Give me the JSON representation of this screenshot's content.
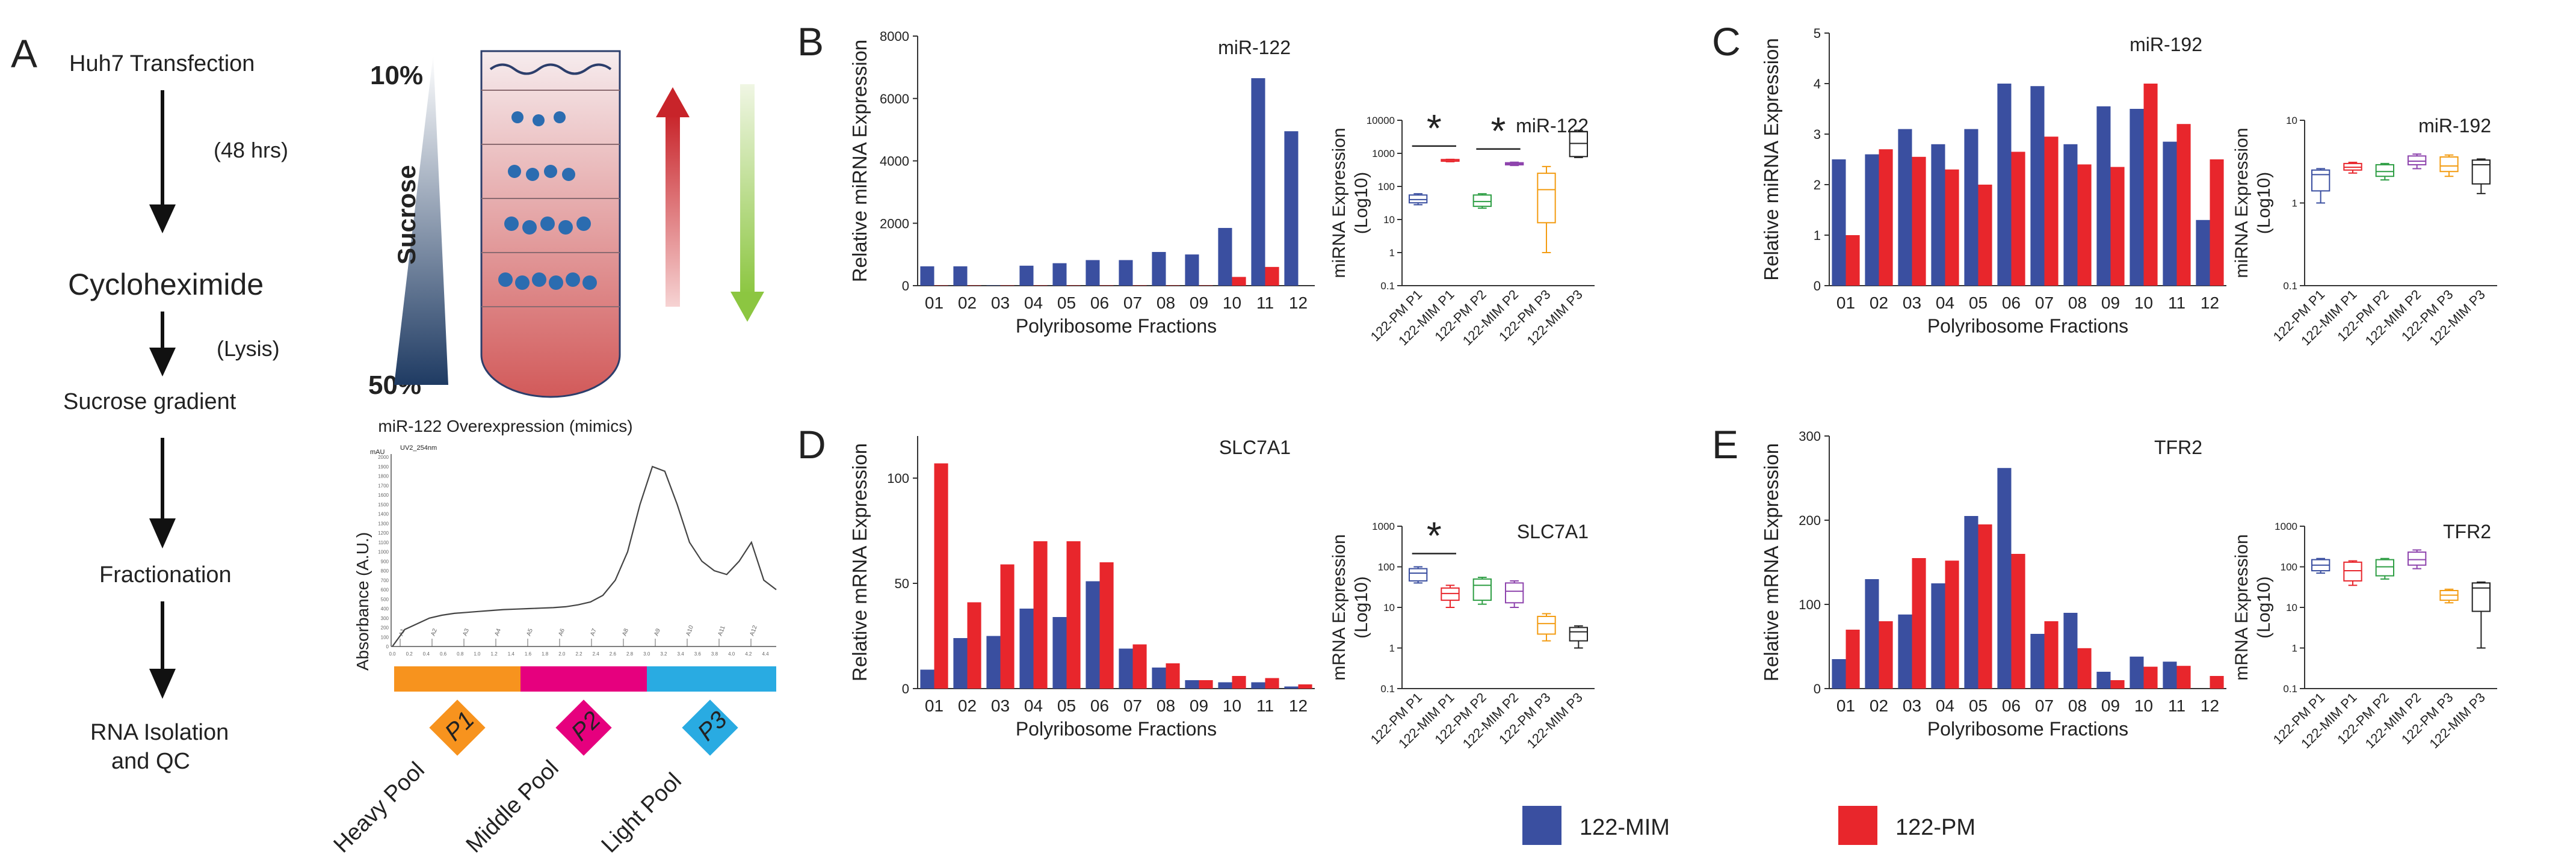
{
  "colors": {
    "mim": "#3a4fa0",
    "pm": "#e8262c",
    "arrow_red": "#c8242a",
    "arrow_green": "#8cc641",
    "pool1": "#f7931e",
    "pool2": "#e6007e",
    "pool3": "#29abe2"
  },
  "panel_letters": {
    "a": "A",
    "b": "B",
    "c": "C",
    "d": "D",
    "e": "E"
  },
  "workflow": {
    "steps": [
      "Huh7 Transfection",
      "(48 hrs)",
      "Cycloheximide",
      "(Lysis)",
      "Sucrose gradient",
      "Fractionation",
      "RNA Isolation",
      "and QC"
    ]
  },
  "gradient": {
    "top": "10%",
    "bottom": "50%",
    "label": "Sucrose"
  },
  "profile": {
    "title": "miR-122 Overexpression (mimics)",
    "ylabel": "Absorbance (A.U.)",
    "instrument_label": "UV2_254nm",
    "unit_label": "mAU",
    "yticks": [
      "2000",
      "1900",
      "1800",
      "1700",
      "1600",
      "1500",
      "1400",
      "1300",
      "1200",
      "1100",
      "1000",
      "900",
      "800",
      "700",
      "600",
      "500",
      "400",
      "300",
      "200",
      "100",
      "0"
    ],
    "xticks": [
      "0.0",
      "0.2",
      "0.4",
      "0.6",
      "0.8",
      "1.0",
      "1.2",
      "1.4",
      "1.6",
      "1.8",
      "2.0",
      "2.2",
      "2.4",
      "2.6",
      "2.8",
      "3.0",
      "3.2",
      "3.4",
      "3.6",
      "3.8",
      "4.0",
      "4.2",
      "4.4"
    ],
    "fraction_marks": [
      "A1",
      "A2",
      "A3",
      "A4",
      "A5",
      "A6",
      "A7",
      "A8",
      "A9",
      "A10",
      "A11",
      "A12"
    ],
    "trace_y": [
      0,
      180,
      240,
      300,
      330,
      350,
      360,
      370,
      380,
      390,
      395,
      400,
      405,
      410,
      420,
      440,
      470,
      540,
      700,
      1000,
      1500,
      1900,
      1850,
      1500,
      1100,
      900,
      800,
      760,
      900,
      1100,
      700,
      600
    ]
  },
  "pools": [
    {
      "code": "P1",
      "label": "Heavy Pool"
    },
    {
      "code": "P2",
      "label": "Middle Pool"
    },
    {
      "code": "P3",
      "label": "Light  Pool"
    }
  ],
  "legend": {
    "mim": "122-MIM",
    "pm": "122-PM"
  },
  "chart_data": [
    {
      "panel": "B",
      "type": "bar",
      "title": "miR-122",
      "xlabel": "Polyribosome Fractions",
      "ylabel": "Relative miRNA Expression",
      "categories": [
        "01",
        "02",
        "03",
        "04",
        "05",
        "06",
        "07",
        "08",
        "09",
        "10",
        "11",
        "12"
      ],
      "ylim": [
        0,
        8000
      ],
      "yticks": [
        "0",
        "2000",
        "4000",
        "6000",
        "8000"
      ],
      "series": [
        {
          "name": "122-MIM",
          "values": [
            620,
            620,
            10,
            640,
            720,
            820,
            820,
            1080,
            1000,
            1850,
            6650,
            4950
          ]
        },
        {
          "name": "122-PM",
          "values": [
            10,
            10,
            10,
            10,
            10,
            10,
            10,
            10,
            10,
            280,
            600,
            0
          ]
        }
      ]
    },
    {
      "panel": "B",
      "type": "box",
      "title": "miR-122",
      "scale": "log",
      "ylabel_line1": "miRNA Expression",
      "ylabel_line2": "(Log10)",
      "ylim": [
        0.1,
        10000
      ],
      "yticks": [
        "0.1",
        "1",
        "10",
        "100",
        "1000",
        "10000"
      ],
      "categories": [
        "122-PM P1",
        "122-MIM P1",
        "122-PM P2",
        "122-MIM P2",
        "122-PM P3",
        "122-MIM P3"
      ],
      "box_colors": [
        "#3a4fa0",
        "#e8262c",
        "#2e9e44",
        "#8e44ad",
        "#f39c12",
        "#222222"
      ],
      "boxes": [
        [
          28,
          32,
          40,
          55,
          60
        ],
        [
          560,
          580,
          600,
          650,
          660
        ],
        [
          22,
          25,
          35,
          55,
          60
        ],
        [
          430,
          450,
          480,
          520,
          540
        ],
        [
          1,
          8,
          80,
          250,
          400
        ],
        [
          750,
          800,
          2000,
          4500,
          5000
        ]
      ],
      "significance": [
        {
          "between": [
            0,
            1
          ],
          "label": "*"
        },
        {
          "between": [
            2,
            3
          ],
          "label": "*"
        }
      ]
    },
    {
      "panel": "C",
      "type": "bar",
      "title": "miR-192",
      "xlabel": "Polyribosome Fractions",
      "ylabel": "Relative miRNA Expression",
      "categories": [
        "01",
        "02",
        "03",
        "04",
        "05",
        "06",
        "07",
        "08",
        "09",
        "10",
        "11",
        "12"
      ],
      "ylim": [
        0,
        5
      ],
      "yticks": [
        "0",
        "1",
        "2",
        "3",
        "4",
        "5"
      ],
      "series": [
        {
          "name": "122-MIM",
          "values": [
            2.5,
            2.6,
            3.1,
            2.8,
            3.1,
            4.0,
            3.95,
            2.8,
            3.55,
            3.5,
            2.85,
            1.3
          ]
        },
        {
          "name": "122-PM",
          "values": [
            1.0,
            2.7,
            2.55,
            2.3,
            2.0,
            2.65,
            2.95,
            2.4,
            2.35,
            4.0,
            3.2,
            2.5
          ]
        }
      ]
    },
    {
      "panel": "C",
      "type": "box",
      "title": "miR-192",
      "scale": "log",
      "ylabel_line1": "miRNA Expression",
      "ylabel_line2": "(Log10)",
      "ylim": [
        0.1,
        10
      ],
      "yticks": [
        "0.1",
        "1",
        "10"
      ],
      "categories": [
        "122-PM P1",
        "122-MIM P1",
        "122-PM P2",
        "122-MIM P2",
        "122-PM P3",
        "122-MIM P3"
      ],
      "box_colors": [
        "#3a4fa0",
        "#e8262c",
        "#2e9e44",
        "#8e44ad",
        "#f39c12",
        "#222222"
      ],
      "boxes": [
        [
          1.0,
          1.4,
          2.2,
          2.5,
          2.6
        ],
        [
          2.3,
          2.5,
          2.7,
          3.0,
          3.1
        ],
        [
          1.9,
          2.1,
          2.4,
          2.9,
          3.0
        ],
        [
          2.6,
          2.9,
          3.2,
          3.7,
          3.9
        ],
        [
          2.1,
          2.4,
          2.8,
          3.6,
          3.8
        ],
        [
          1.3,
          1.7,
          2.9,
          3.3,
          3.4
        ]
      ]
    },
    {
      "panel": "D",
      "type": "bar",
      "title": "SLC7A1",
      "xlabel": "Polyribosome Fractions",
      "ylabel": "Relative mRNA Expression",
      "categories": [
        "01",
        "02",
        "03",
        "04",
        "05",
        "06",
        "07",
        "08",
        "09",
        "10",
        "11",
        "12"
      ],
      "ylim": [
        0,
        120
      ],
      "yticks": [
        "0",
        "50",
        "100"
      ],
      "series": [
        {
          "name": "122-MIM",
          "values": [
            9,
            24,
            25,
            38,
            34,
            51,
            19,
            10,
            4,
            3,
            3,
            1
          ]
        },
        {
          "name": "122-PM",
          "values": [
            107,
            41,
            59,
            70,
            70,
            60,
            21,
            12,
            4,
            6,
            5,
            2
          ]
        }
      ]
    },
    {
      "panel": "D",
      "type": "box",
      "title": "SLC7A1",
      "scale": "log",
      "ylabel_line1": "mRNA Expression",
      "ylabel_line2": "(Log10)",
      "ylim": [
        0.1,
        1000
      ],
      "yticks": [
        "0.1",
        "1",
        "10",
        "100",
        "1000"
      ],
      "categories": [
        "122-PM P1",
        "122-MIM P1",
        "122-PM P2",
        "122-MIM P2",
        "122-PM P3",
        "122-MIM P3"
      ],
      "box_colors": [
        "#3a4fa0",
        "#e8262c",
        "#2e9e44",
        "#8e44ad",
        "#f39c12",
        "#222222"
      ],
      "boxes": [
        [
          40,
          45,
          70,
          90,
          100
        ],
        [
          10,
          15,
          22,
          30,
          35
        ],
        [
          12,
          15,
          35,
          50,
          55
        ],
        [
          10,
          13,
          25,
          40,
          45
        ],
        [
          1.5,
          2.2,
          4,
          6,
          7
        ],
        [
          1,
          1.5,
          2.5,
          3.2,
          3.5
        ]
      ],
      "significance": [
        {
          "between": [
            0,
            1
          ],
          "label": "*"
        }
      ]
    },
    {
      "panel": "E",
      "type": "bar",
      "title": "TFR2",
      "xlabel": "Polyribosome Fractions",
      "ylabel": "Relative mRNA Expression",
      "categories": [
        "01",
        "02",
        "03",
        "04",
        "05",
        "06",
        "07",
        "08",
        "09",
        "10",
        "11",
        "12"
      ],
      "ylim": [
        0,
        300
      ],
      "yticks": [
        "0",
        "100",
        "200",
        "300"
      ],
      "series": [
        {
          "name": "122-MIM",
          "values": [
            35,
            130,
            88,
            125,
            205,
            262,
            65,
            90,
            20,
            38,
            32,
            0
          ]
        },
        {
          "name": "122-PM",
          "values": [
            70,
            80,
            155,
            152,
            195,
            160,
            80,
            48,
            10,
            26,
            27,
            15
          ]
        }
      ]
    },
    {
      "panel": "E",
      "type": "box",
      "title": "TFR2",
      "scale": "log",
      "ylabel_line1": "mRNA Expression",
      "ylabel_line2": "(Log10)",
      "ylim": [
        0.1,
        1000
      ],
      "yticks": [
        "0.1",
        "1",
        "10",
        "100",
        "1000"
      ],
      "categories": [
        "122-PM P1",
        "122-MIM P1",
        "122-PM P2",
        "122-MIM P2",
        "122-PM P3",
        "122-MIM P3"
      ],
      "box_colors": [
        "#3a4fa0",
        "#e8262c",
        "#2e9e44",
        "#8e44ad",
        "#f39c12",
        "#222222"
      ],
      "boxes": [
        [
          70,
          80,
          110,
          150,
          160
        ],
        [
          35,
          45,
          80,
          130,
          140
        ],
        [
          50,
          60,
          100,
          150,
          160
        ],
        [
          90,
          110,
          150,
          230,
          260
        ],
        [
          13,
          15,
          20,
          26,
          28
        ],
        [
          1,
          8,
          30,
          40,
          42
        ]
      ]
    }
  ]
}
